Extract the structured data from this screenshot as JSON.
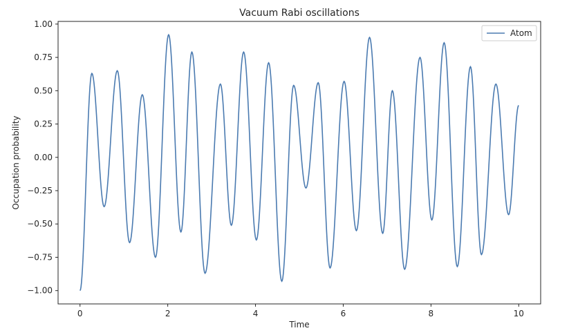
{
  "chart_data": {
    "type": "line",
    "title": "Vacuum Rabi oscillations",
    "xlabel": "Time",
    "ylabel": "Occupation probability",
    "xlim": [
      -0.5,
      10.5
    ],
    "ylim": [
      -1.1,
      1.02
    ],
    "xticks": [
      0,
      2,
      4,
      6,
      8,
      10
    ],
    "xtick_labels": [
      "0",
      "2",
      "4",
      "6",
      "8",
      "10"
    ],
    "yticks": [
      -1.0,
      -0.75,
      -0.5,
      -0.25,
      0.0,
      0.25,
      0.5,
      0.75,
      1.0
    ],
    "ytick_labels": [
      "−1.00",
      "−0.75",
      "−0.50",
      "−0.25",
      "0.00",
      "0.25",
      "0.50",
      "0.75",
      "1.00"
    ],
    "grid": false,
    "legend_position": "upper-right",
    "series": [
      {
        "name": "Atom",
        "color": "#4a7ab0",
        "extrema": [
          [
            0.0,
            -1.0
          ],
          [
            0.27,
            0.63
          ],
          [
            0.55,
            -0.37
          ],
          [
            0.85,
            0.65
          ],
          [
            1.13,
            -0.64
          ],
          [
            1.42,
            0.47
          ],
          [
            1.72,
            -0.75
          ],
          [
            2.02,
            0.92
          ],
          [
            2.3,
            -0.56
          ],
          [
            2.55,
            0.79
          ],
          [
            2.85,
            -0.87
          ],
          [
            3.2,
            0.55
          ],
          [
            3.45,
            -0.51
          ],
          [
            3.73,
            0.79
          ],
          [
            4.02,
            -0.62
          ],
          [
            4.3,
            0.71
          ],
          [
            4.6,
            -0.93
          ],
          [
            4.87,
            0.54
          ],
          [
            5.15,
            -0.23
          ],
          [
            5.43,
            0.56
          ],
          [
            5.7,
            -0.83
          ],
          [
            6.02,
            0.57
          ],
          [
            6.3,
            -0.55
          ],
          [
            6.6,
            0.9
          ],
          [
            6.9,
            -0.57
          ],
          [
            7.12,
            0.5
          ],
          [
            7.4,
            -0.84
          ],
          [
            7.75,
            0.75
          ],
          [
            8.02,
            -0.47
          ],
          [
            8.3,
            0.86
          ],
          [
            8.6,
            -0.82
          ],
          [
            8.9,
            0.68
          ],
          [
            9.15,
            -0.73
          ],
          [
            9.48,
            0.55
          ],
          [
            9.77,
            -0.43
          ],
          [
            10.0,
            0.39
          ]
        ]
      }
    ]
  }
}
